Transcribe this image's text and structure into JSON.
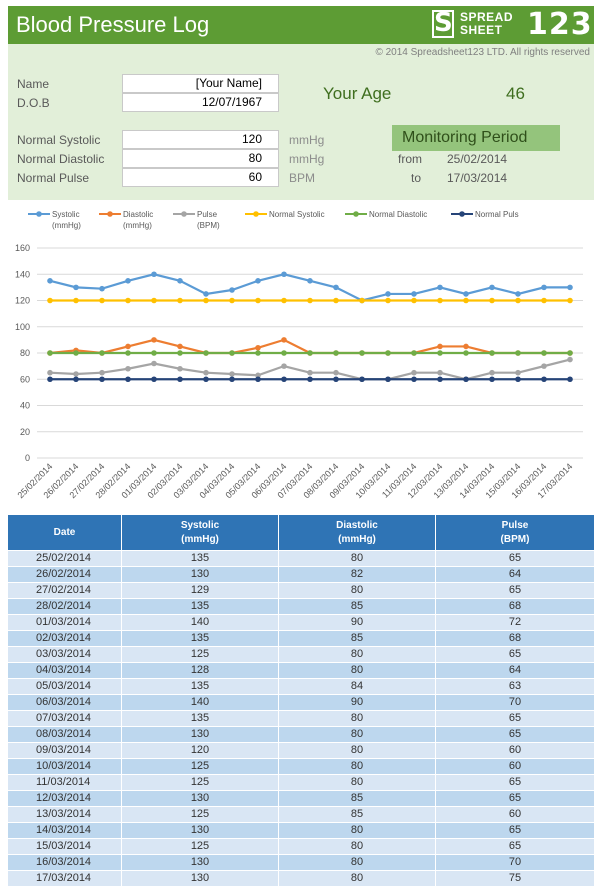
{
  "header": {
    "title": "Blood Pressure Log",
    "logo_word1": "SPREAD",
    "logo_word2": "SHEET",
    "logo_number": "123",
    "logo_letter": "S"
  },
  "info": {
    "copyright": "© 2014 Spreadsheet123 LTD. All rights reserved",
    "name_label": "Name",
    "name_value": "[Your Name]",
    "dob_label": "D.O.B",
    "dob_value": "12/07/1967",
    "age_label": "Your Age",
    "age_value": "46",
    "systolic_label": "Normal Systolic",
    "systolic_value": "120",
    "systolic_unit": "mmHg",
    "diastolic_label": "Normal Diastolic",
    "diastolic_value": "80",
    "diastolic_unit": "mmHg",
    "pulse_label": "Normal Pulse",
    "pulse_value": "60",
    "pulse_unit": "BPM",
    "monitoring_label": "Monitoring Period",
    "from_label": "from",
    "from_value": "25/02/2014",
    "to_label": "to",
    "to_value": "17/03/2014"
  },
  "chart_data": {
    "type": "line",
    "title": "",
    "xlabel": "",
    "ylabel": "",
    "ylim": [
      0,
      160
    ],
    "yticks": [
      0,
      20,
      40,
      60,
      80,
      100,
      120,
      140,
      160
    ],
    "categories": [
      "25/02/2014",
      "26/02/2014",
      "27/02/2014",
      "28/02/2014",
      "01/03/2014",
      "02/03/2014",
      "03/03/2014",
      "04/03/2014",
      "05/03/2014",
      "06/03/2014",
      "07/03/2014",
      "08/03/2014",
      "09/03/2014",
      "10/03/2014",
      "11/03/2014",
      "12/03/2014",
      "13/03/2014",
      "14/03/2014",
      "15/03/2014",
      "16/03/2014",
      "17/03/2014"
    ],
    "legend_position": "top",
    "series": [
      {
        "name": "Systolic",
        "legend_line1": "Systolic",
        "legend_line2": "(mmHg)",
        "color": "#5b9bd5",
        "values": [
          135,
          130,
          129,
          135,
          140,
          135,
          125,
          128,
          135,
          140,
          135,
          130,
          120,
          125,
          125,
          130,
          125,
          130,
          125,
          130,
          130
        ]
      },
      {
        "name": "Diastolic",
        "legend_line1": "Diastolic",
        "legend_line2": "(mmHg)",
        "color": "#ed7d31",
        "values": [
          80,
          82,
          80,
          85,
          90,
          85,
          80,
          80,
          84,
          90,
          80,
          80,
          80,
          80,
          80,
          85,
          85,
          80,
          80,
          80,
          80
        ]
      },
      {
        "name": "Pulse",
        "legend_line1": "Pulse",
        "legend_line2": "(BPM)",
        "color": "#a5a5a5",
        "values": [
          65,
          64,
          65,
          68,
          72,
          68,
          65,
          64,
          63,
          70,
          65,
          65,
          60,
          60,
          65,
          65,
          60,
          65,
          65,
          70,
          75
        ]
      },
      {
        "name": "Normal Systolic",
        "legend_line1": "Normal Systolic",
        "legend_line2": "",
        "color": "#ffc000",
        "values": [
          120,
          120,
          120,
          120,
          120,
          120,
          120,
          120,
          120,
          120,
          120,
          120,
          120,
          120,
          120,
          120,
          120,
          120,
          120,
          120,
          120
        ]
      },
      {
        "name": "Normal Diastolic",
        "legend_line1": "Normal Diastolic",
        "legend_line2": "",
        "color": "#70ad47",
        "values": [
          80,
          80,
          80,
          80,
          80,
          80,
          80,
          80,
          80,
          80,
          80,
          80,
          80,
          80,
          80,
          80,
          80,
          80,
          80,
          80,
          80
        ]
      },
      {
        "name": "Normal Puls",
        "legend_line1": "Normal Puls",
        "legend_line2": "",
        "color": "#264478",
        "values": [
          60,
          60,
          60,
          60,
          60,
          60,
          60,
          60,
          60,
          60,
          60,
          60,
          60,
          60,
          60,
          60,
          60,
          60,
          60,
          60,
          60
        ]
      }
    ]
  },
  "table": {
    "headers": [
      {
        "line1": "Date",
        "line2": ""
      },
      {
        "line1": "Systolic",
        "line2": "(mmHg)"
      },
      {
        "line1": "Diastolic",
        "line2": "(mmHg)"
      },
      {
        "line1": "Pulse",
        "line2": "(BPM)"
      }
    ],
    "rows": [
      [
        "25/02/2014",
        "135",
        "80",
        "65"
      ],
      [
        "26/02/2014",
        "130",
        "82",
        "64"
      ],
      [
        "27/02/2014",
        "129",
        "80",
        "65"
      ],
      [
        "28/02/2014",
        "135",
        "85",
        "68"
      ],
      [
        "01/03/2014",
        "140",
        "90",
        "72"
      ],
      [
        "02/03/2014",
        "135",
        "85",
        "68"
      ],
      [
        "03/03/2014",
        "125",
        "80",
        "65"
      ],
      [
        "04/03/2014",
        "128",
        "80",
        "64"
      ],
      [
        "05/03/2014",
        "135",
        "84",
        "63"
      ],
      [
        "06/03/2014",
        "140",
        "90",
        "70"
      ],
      [
        "07/03/2014",
        "135",
        "80",
        "65"
      ],
      [
        "08/03/2014",
        "130",
        "80",
        "65"
      ],
      [
        "09/03/2014",
        "120",
        "80",
        "60"
      ],
      [
        "10/03/2014",
        "125",
        "80",
        "60"
      ],
      [
        "11/03/2014",
        "125",
        "80",
        "65"
      ],
      [
        "12/03/2014",
        "130",
        "85",
        "65"
      ],
      [
        "13/03/2014",
        "125",
        "85",
        "60"
      ],
      [
        "14/03/2014",
        "130",
        "80",
        "65"
      ],
      [
        "15/03/2014",
        "125",
        "80",
        "65"
      ],
      [
        "16/03/2014",
        "130",
        "80",
        "70"
      ],
      [
        "17/03/2014",
        "130",
        "80",
        "75"
      ]
    ]
  }
}
